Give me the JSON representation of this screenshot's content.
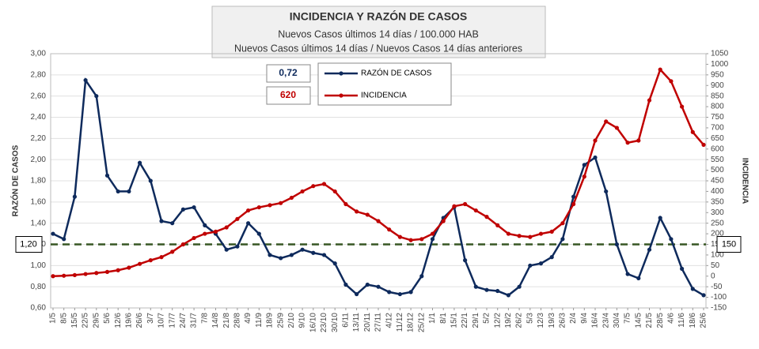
{
  "chart_data": {
    "type": "line",
    "title": "INCIDENCIA Y RAZÓN DE CASOS",
    "subtitle": "Nuevos Casos últimos 14 días / 100.000 HAB",
    "subtitle2": "Nuevos Casos últimos 14 días / Nuevos Casos 14 días anteriores",
    "y_label": "RAZÓN DE CASOS",
    "y2_label": "INCIDENCIA",
    "categories": [
      "1/5",
      "8/5",
      "15/5",
      "22/5",
      "29/5",
      "5/6",
      "12/6",
      "19/6",
      "26/6",
      "3/7",
      "10/7",
      "17/7",
      "24/7",
      "31/7",
      "7/8",
      "14/8",
      "21/8",
      "28/8",
      "4/9",
      "11/9",
      "18/9",
      "25/9",
      "2/10",
      "9/10",
      "16/10",
      "23/10",
      "30/10",
      "6/11",
      "13/11",
      "20/11",
      "27/11",
      "4/12",
      "11/12",
      "18/12",
      "25/12",
      "1/1",
      "8/1",
      "15/1",
      "22/1",
      "29/1",
      "5/2",
      "12/2",
      "19/2",
      "26/2",
      "5/3",
      "12/3",
      "19/3",
      "26/3",
      "2/4",
      "9/4",
      "16/4",
      "23/4",
      "30/4",
      "7/5",
      "14/5",
      "21/5",
      "28/5",
      "4/6",
      "11/6",
      "18/6",
      "25/6"
    ],
    "series": [
      {
        "name": "RAZÓN DE CASOS",
        "color": "#0e2a5c",
        "latest_label": "0,72",
        "values": [
          1.3,
          1.25,
          1.65,
          2.75,
          2.6,
          1.85,
          1.7,
          1.7,
          1.97,
          1.8,
          1.42,
          1.4,
          1.53,
          1.55,
          1.38,
          1.3,
          1.15,
          1.18,
          1.4,
          1.3,
          1.1,
          1.07,
          1.1,
          1.15,
          1.12,
          1.1,
          1.02,
          0.82,
          0.73,
          0.82,
          0.8,
          0.75,
          0.73,
          0.75,
          0.9,
          1.25,
          1.45,
          1.55,
          1.05,
          0.8,
          0.77,
          0.76,
          0.72,
          0.8,
          1.0,
          1.02,
          1.08,
          1.25,
          1.65,
          1.95,
          2.02,
          1.7,
          1.2,
          0.92,
          0.88,
          1.15,
          1.45,
          1.25,
          0.97,
          0.78,
          0.72
        ]
      },
      {
        "name": "INCIDENCIA",
        "color": "#c00000",
        "axis": "y2",
        "latest_label": "620",
        "values": [
          0,
          2,
          5,
          10,
          15,
          20,
          28,
          40,
          58,
          75,
          90,
          115,
          150,
          180,
          200,
          210,
          230,
          270,
          310,
          325,
          335,
          345,
          370,
          400,
          425,
          435,
          400,
          340,
          305,
          290,
          260,
          220,
          185,
          170,
          175,
          200,
          260,
          330,
          340,
          310,
          280,
          240,
          200,
          190,
          185,
          200,
          210,
          250,
          340,
          470,
          640,
          730,
          700,
          630,
          640,
          830,
          975,
          920,
          800,
          680,
          620
        ]
      }
    ],
    "ylim": [
      0.6,
      3.0
    ],
    "yticks": [
      {
        "value": 0.6,
        "label": "0,60"
      },
      {
        "value": 0.8,
        "label": "0,80"
      },
      {
        "value": 1.0,
        "label": "1,00"
      },
      {
        "value": 1.2,
        "label": "1,20"
      },
      {
        "value": 1.4,
        "label": "1,40"
      },
      {
        "value": 1.6,
        "label": "1,60"
      },
      {
        "value": 1.8,
        "label": "1,80"
      },
      {
        "value": 2.0,
        "label": "2,00"
      },
      {
        "value": 2.2,
        "label": "2,20"
      },
      {
        "value": 2.4,
        "label": "2,40"
      },
      {
        "value": 2.6,
        "label": "2,60"
      },
      {
        "value": 2.8,
        "label": "2,80"
      },
      {
        "value": 3.0,
        "label": "3,00"
      }
    ],
    "y2lim": [
      -150,
      1050
    ],
    "y2ticks": [
      -150,
      -100,
      -50,
      0,
      50,
      100,
      150,
      200,
      250,
      300,
      350,
      400,
      450,
      500,
      550,
      600,
      650,
      700,
      750,
      800,
      850,
      900,
      950,
      1000,
      1050
    ],
    "threshold": {
      "value": 1.2,
      "label": "1,20",
      "color": "#375623"
    },
    "threshold2": {
      "value": 150,
      "label": "150"
    },
    "grid": true
  }
}
